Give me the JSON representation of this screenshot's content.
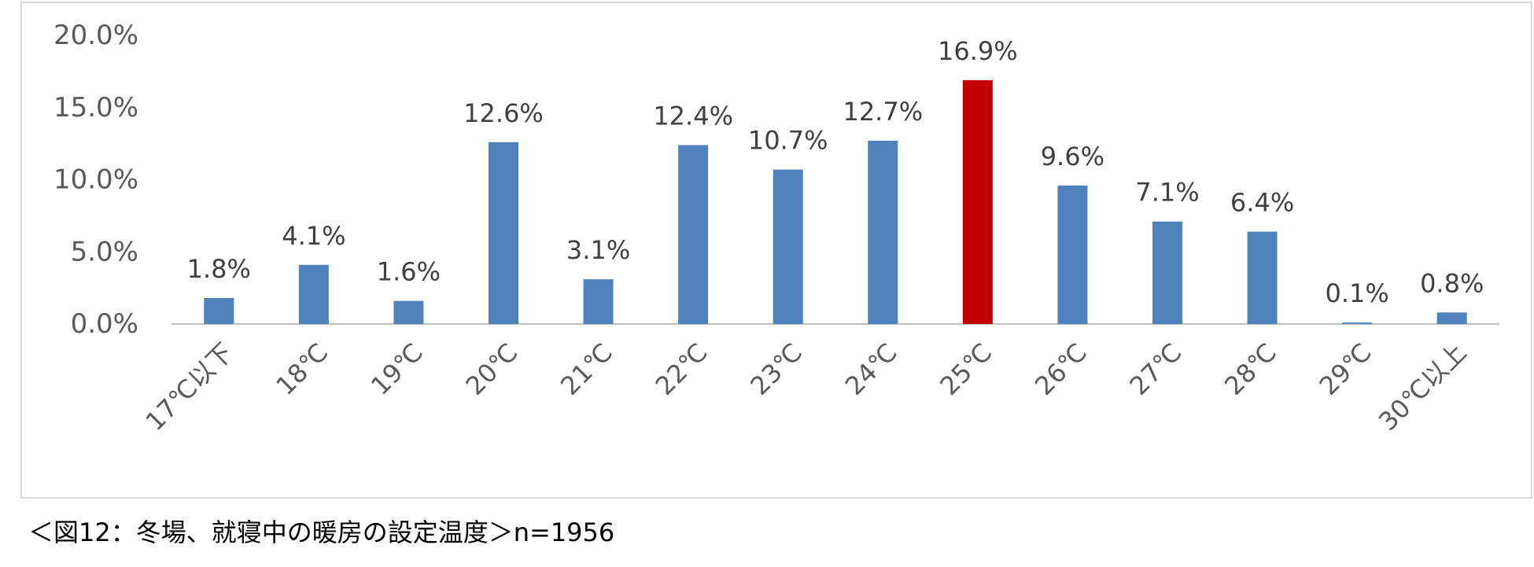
{
  "chart_data": {
    "type": "bar",
    "categories": [
      "17℃以下",
      "18℃",
      "19℃",
      "20℃",
      "21℃",
      "22℃",
      "23℃",
      "24℃",
      "25℃",
      "26℃",
      "27℃",
      "28℃",
      "29℃",
      "30℃以上"
    ],
    "values": [
      1.8,
      4.1,
      1.6,
      12.6,
      3.1,
      12.4,
      10.7,
      12.7,
      16.9,
      9.6,
      7.1,
      6.4,
      0.1,
      0.8
    ],
    "data_labels": [
      "1.8%",
      "4.1%",
      "1.6%",
      "12.6%",
      "3.1%",
      "12.4%",
      "10.7%",
      "12.7%",
      "16.9%",
      "9.6%",
      "7.1%",
      "6.4%",
      "0.1%",
      "0.8%"
    ],
    "y_ticks": [
      "0.0%",
      "5.0%",
      "10.0%",
      "15.0%",
      "20.0%"
    ],
    "ylim": [
      0,
      20
    ],
    "colors": {
      "bar": "#4f81bd",
      "highlight": "#c00000",
      "highlight_category": "25℃",
      "axis": "#bfbfbf",
      "tick_text": "#595959",
      "label_text": "#404040"
    },
    "grid": false,
    "legend": "none"
  },
  "caption": "＜図12：冬場、就寝中の暖房の設定温度＞n=1956"
}
